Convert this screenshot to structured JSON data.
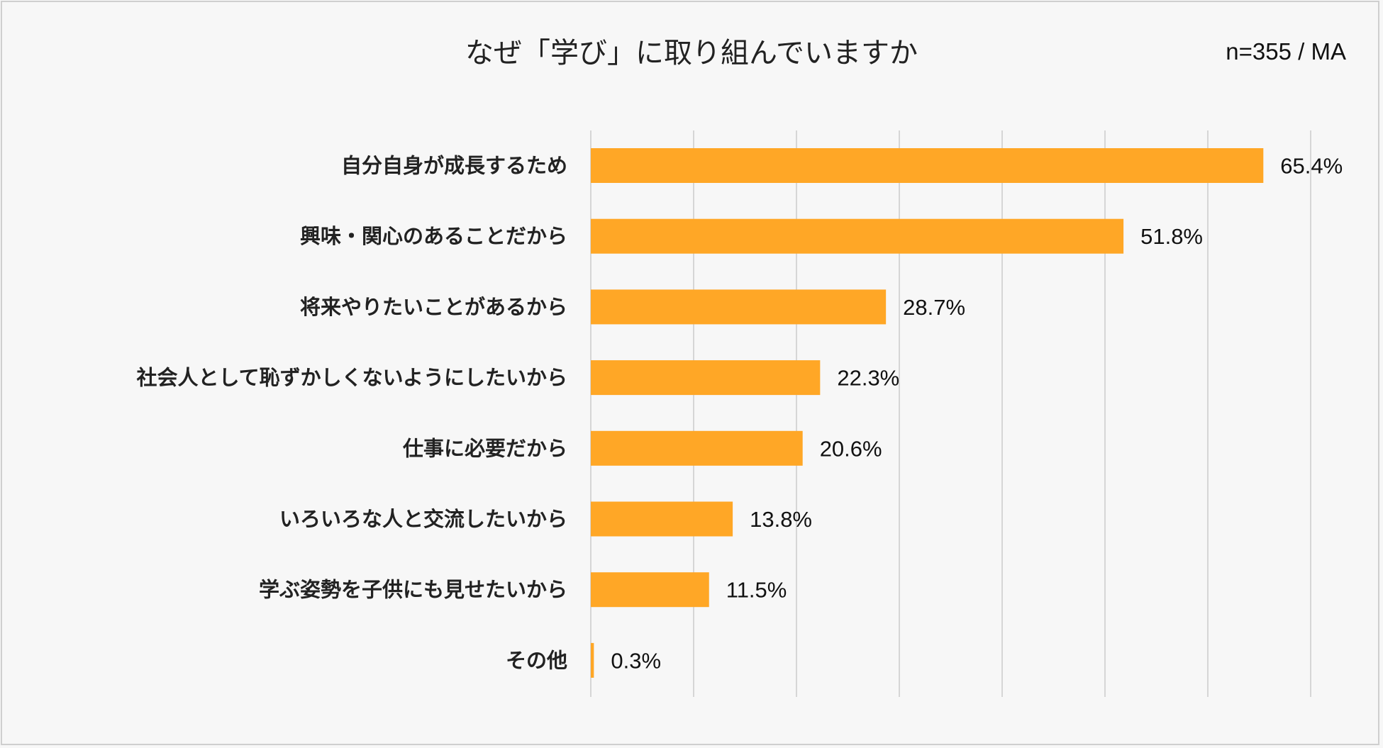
{
  "chart_data": {
    "type": "bar",
    "orientation": "horizontal",
    "title": "なぜ「学び」に取り組んでいますか",
    "note": "n=355 / MA",
    "categories": [
      "自分自身が成長するため",
      "興味・関心のあることだから",
      "将来やりたいことがあるから",
      "社会人として恥ずかしくないようにしたいから",
      "仕事に必要だから",
      "いろいろな人と交流したいから",
      "学ぶ姿勢を子供にも見せたいから",
      "その他"
    ],
    "values": [
      65.4,
      51.8,
      28.7,
      22.3,
      20.6,
      13.8,
      11.5,
      0.3
    ],
    "labels": [
      "65.4%",
      "51.8%",
      "28.7%",
      "22.3%",
      "20.6%",
      "13.8%",
      "11.5%",
      "0.3%"
    ],
    "xlim": [
      0,
      70
    ],
    "grid_step": 10,
    "grid": true,
    "bar_color": "#ffa726"
  }
}
